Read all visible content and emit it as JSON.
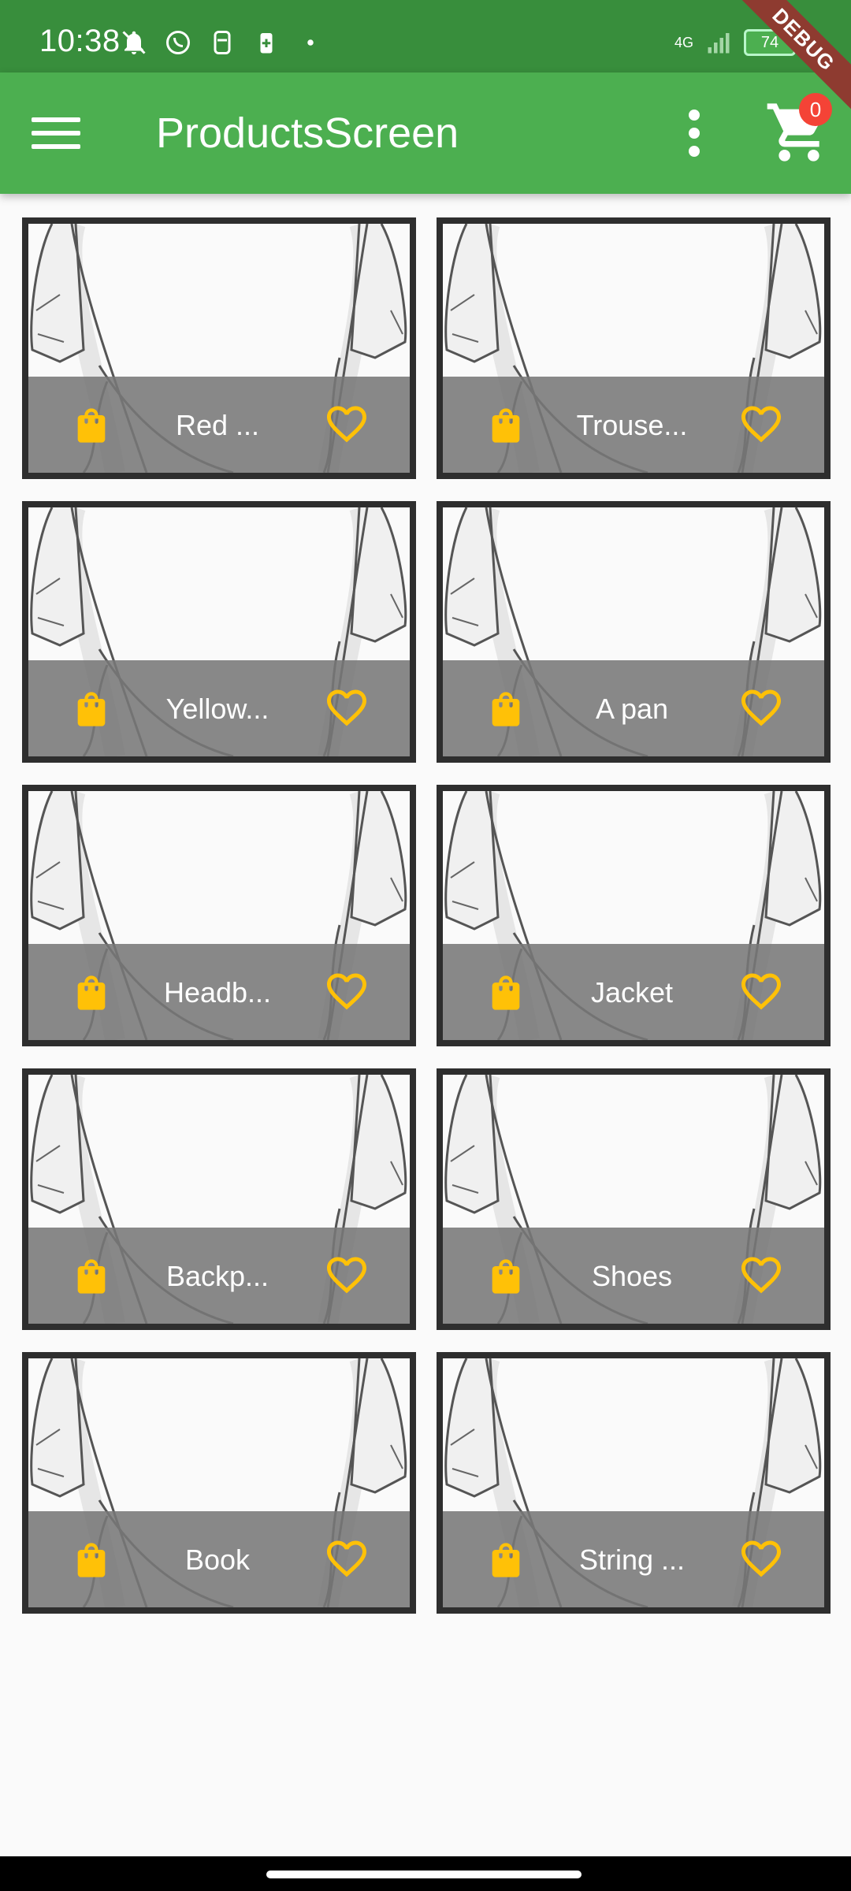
{
  "status_bar": {
    "time": "10:38",
    "network": "4G",
    "battery": "74",
    "colors": {
      "background": "#388e3c"
    }
  },
  "app_bar": {
    "title": "ProductsScreen",
    "cart_count": "0",
    "debug_label": "DEBUG",
    "colors": {
      "background": "#4caf50",
      "badge": "#f44336"
    },
    "icons": {
      "menu": "menu-icon",
      "overflow": "more-vert-icon",
      "cart": "shopping-cart-icon"
    }
  },
  "products": [
    {
      "name": "Red ..."
    },
    {
      "name": "Trouse..."
    },
    {
      "name": "Yellow..."
    },
    {
      "name": "A pan"
    },
    {
      "name": "Headb..."
    },
    {
      "name": "Jacket"
    },
    {
      "name": "Backp..."
    },
    {
      "name": "Shoes"
    },
    {
      "name": "Book"
    },
    {
      "name": "String ..."
    }
  ],
  "product_icons": {
    "bag": "shopping-bag-icon",
    "favorite": "favorite-border-icon"
  },
  "colors": {
    "accent": "#ffc107",
    "card_border": "#2e2e2e",
    "footer": "#787878"
  }
}
